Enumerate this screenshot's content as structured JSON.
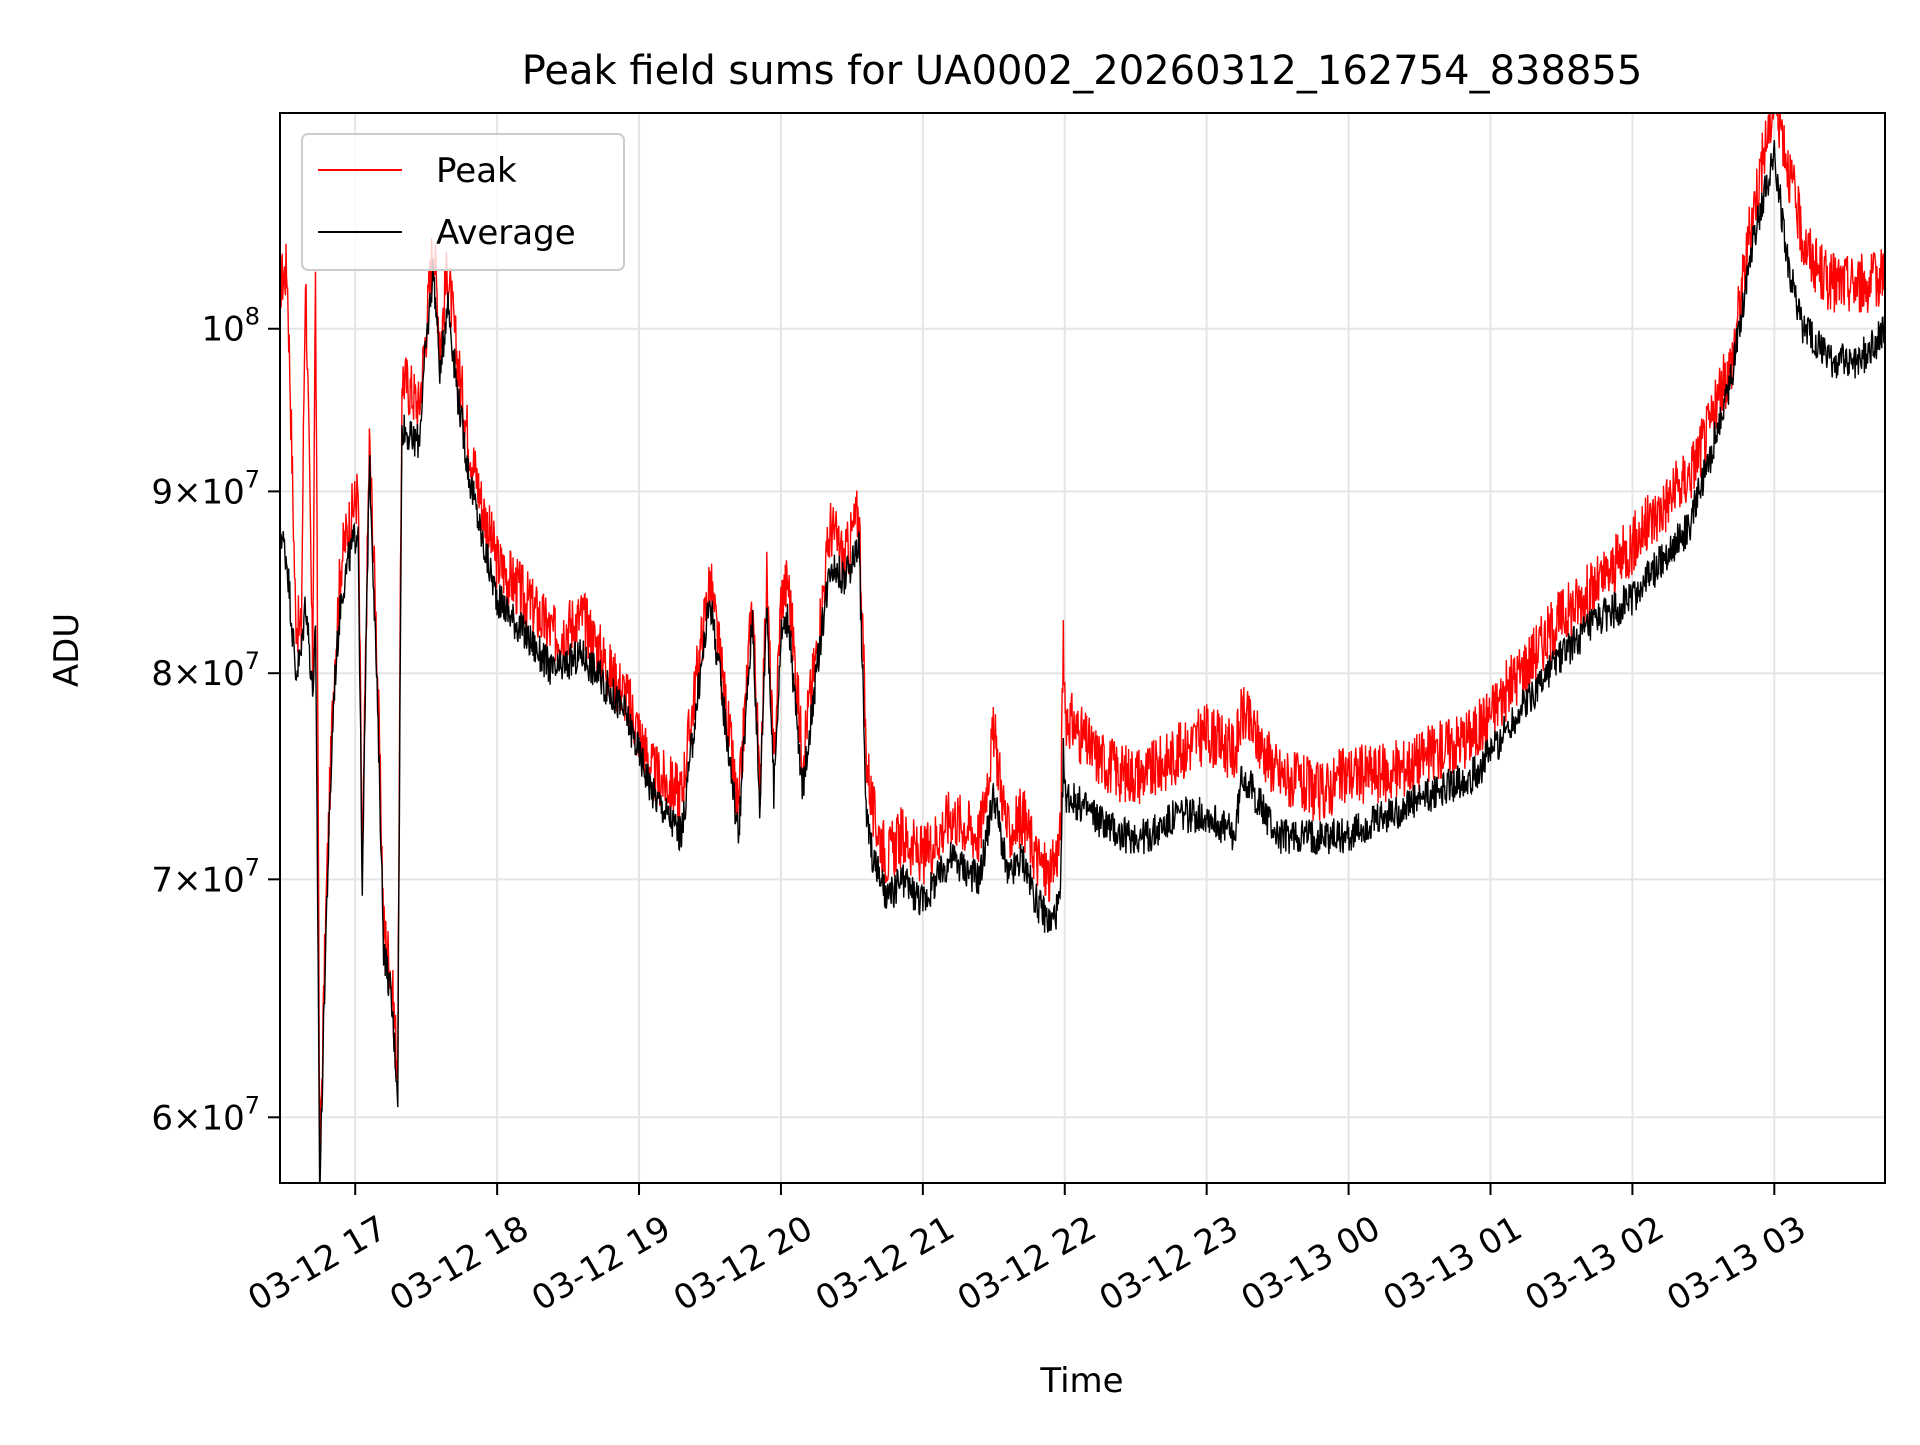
{
  "chart_data": {
    "type": "line",
    "title": "Peak field sums for UA0002_20260312_162754_838855",
    "xlabel": "Time",
    "ylabel": "ADU",
    "x_unit": "hours since 03-12 16:00",
    "xlim": [
      16.47,
      27.78
    ],
    "ylim": [
      57.5,
      115.0
    ],
    "y_scale": "log",
    "grid": true,
    "legend_position": "top-left",
    "x_ticks": [
      {
        "value": 17,
        "label": "03-12 17"
      },
      {
        "value": 18,
        "label": "03-12 18"
      },
      {
        "value": 19,
        "label": "03-12 19"
      },
      {
        "value": 20,
        "label": "03-12 20"
      },
      {
        "value": 21,
        "label": "03-12 21"
      },
      {
        "value": 22,
        "label": "03-12 22"
      },
      {
        "value": 23,
        "label": "03-12 23"
      },
      {
        "value": 24,
        "label": "03-13 00"
      },
      {
        "value": 25,
        "label": "03-13 01"
      },
      {
        "value": 26,
        "label": "03-13 02"
      },
      {
        "value": 27,
        "label": "03-13 03"
      }
    ],
    "y_ticks": [
      {
        "value": 60,
        "mantissa": "6",
        "exponent": "7"
      },
      {
        "value": 70,
        "mantissa": "7",
        "exponent": "7"
      },
      {
        "value": 80,
        "mantissa": "8",
        "exponent": "7"
      },
      {
        "value": 90,
        "mantissa": "9",
        "exponent": "7"
      },
      {
        "value": 100,
        "mantissa": "",
        "exponent": "8"
      }
    ],
    "y_tick_base": "10",
    "y_tick_times": "×",
    "y_value_unit": "×10^6 ADU",
    "series": [
      {
        "name": "Peak",
        "color": "#ff0000",
        "x": [
          16.47,
          16.52,
          16.58,
          16.62,
          16.65,
          16.7,
          16.72,
          16.75,
          16.8,
          16.85,
          16.9,
          16.95,
          17.02,
          17.05,
          17.1,
          17.15,
          17.2,
          17.25,
          17.3,
          17.33,
          17.4,
          17.45,
          17.5,
          17.55,
          17.6,
          17.65,
          17.72,
          17.8,
          17.9,
          18.0,
          18.2,
          18.4,
          18.6,
          18.8,
          18.9,
          19.0,
          19.1,
          19.3,
          19.5,
          19.7,
          19.8,
          19.85,
          19.9,
          19.95,
          20.0,
          20.05,
          20.15,
          20.25,
          20.35,
          20.45,
          20.55,
          20.6,
          20.65,
          20.7,
          20.75,
          20.85,
          21.0,
          21.2,
          21.4,
          21.5,
          21.6,
          21.7,
          21.8,
          21.9,
          21.97,
          21.99,
          22.0,
          22.2,
          22.4,
          22.6,
          22.8,
          23.0,
          23.2,
          23.25,
          23.5,
          23.8,
          24.0,
          24.3,
          24.6,
          24.9,
          25.2,
          25.5,
          25.8,
          26.0,
          26.2,
          26.4,
          26.55,
          26.7,
          26.85,
          27.0,
          27.05,
          27.1,
          27.2,
          27.3,
          27.4,
          27.5,
          27.6,
          27.7,
          27.78
        ],
        "y": [
          103,
          104,
          83,
          82,
          104,
          80,
          103,
          58,
          70,
          80,
          86,
          88,
          90,
          70,
          93,
          82,
          68,
          66,
          62,
          97,
          96,
          95,
          100,
          106,
          99,
          104,
          98,
          93,
          89,
          86,
          84,
          82,
          83,
          80,
          79,
          77,
          75,
          74,
          85,
          73,
          84,
          74,
          85,
          75,
          84,
          85,
          76,
          81,
          88,
          86,
          89,
          76,
          73,
          72,
          71,
          72,
          71,
          73,
          72,
          77,
          72,
          73,
          71,
          70,
          72,
          82,
          78,
          76,
          75,
          75,
          76,
          77,
          76,
          78,
          75,
          74,
          75,
          75,
          76,
          77,
          80,
          83,
          85,
          87,
          89,
          91,
          94,
          98,
          108,
          116,
          114,
          111,
          106,
          104,
          103,
          103,
          103,
          103,
          104
        ]
      },
      {
        "name": "Average",
        "color": "#000000",
        "x": [
          16.47,
          16.52,
          16.58,
          16.62,
          16.65,
          16.7,
          16.72,
          16.75,
          16.8,
          16.85,
          16.9,
          16.95,
          17.02,
          17.05,
          17.1,
          17.15,
          17.2,
          17.25,
          17.3,
          17.33,
          17.4,
          17.45,
          17.5,
          17.55,
          17.6,
          17.65,
          17.72,
          17.8,
          17.9,
          18.0,
          18.2,
          18.4,
          18.6,
          18.8,
          18.9,
          19.0,
          19.1,
          19.3,
          19.5,
          19.7,
          19.8,
          19.85,
          19.9,
          19.95,
          20.0,
          20.05,
          20.15,
          20.25,
          20.35,
          20.45,
          20.55,
          20.6,
          20.65,
          20.7,
          20.75,
          20.85,
          21.0,
          21.2,
          21.4,
          21.5,
          21.6,
          21.7,
          21.8,
          21.9,
          21.97,
          21.99,
          22.0,
          22.2,
          22.4,
          22.6,
          22.8,
          23.0,
          23.2,
          23.25,
          23.5,
          23.8,
          24.0,
          24.3,
          24.6,
          24.9,
          25.2,
          25.5,
          25.8,
          26.0,
          26.2,
          26.4,
          26.55,
          26.7,
          26.85,
          27.0,
          27.05,
          27.1,
          27.2,
          27.3,
          27.4,
          27.5,
          27.6,
          27.7,
          27.78
        ],
        "y": [
          88,
          86,
          80,
          81,
          84,
          79,
          82,
          57,
          69,
          79,
          84,
          86,
          88,
          69,
          92,
          80,
          67,
          65,
          61,
          94,
          93,
          93,
          99,
          104,
          97,
          102,
          96,
          91,
          87,
          84,
          82,
          80,
          81,
          79,
          78,
          76,
          74,
          72,
          84,
          72,
          83,
          73,
          84,
          74,
          82,
          83,
          74,
          80,
          86,
          85,
          87,
          73,
          71,
          70,
          69,
          70,
          69,
          71,
          70,
          74,
          70,
          71,
          69,
          68,
          69,
          76,
          74,
          73,
          72,
          72,
          73,
          73,
          72,
          75,
          72,
          72,
          72,
          73,
          74,
          75,
          78,
          81,
          83,
          84,
          86,
          88,
          92,
          97,
          106,
          112,
          108,
          104,
          100,
          99,
          98,
          98,
          98,
          99,
          100
        ]
      }
    ]
  }
}
